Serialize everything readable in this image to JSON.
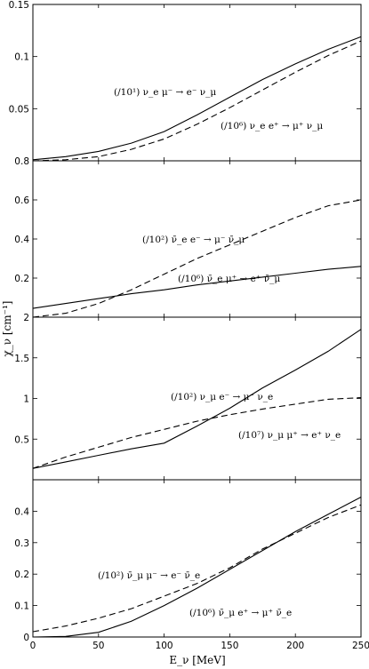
{
  "figure": {
    "ylabel": "χ_ν [cm⁻¹]",
    "xlabel": "E_ν [MeV]"
  },
  "chart_data": [
    {
      "type": "line",
      "xlim": [
        0,
        250
      ],
      "ylim": [
        0,
        0.15
      ],
      "yticks": [
        "0.15",
        "0.1",
        "0.05"
      ],
      "xticks": [],
      "grid": false,
      "series": [
        {
          "name": "(/10¹) ν_e μ⁻ → e⁻ ν_μ",
          "style": "solid",
          "x": [
            0,
            25,
            50,
            75,
            100,
            125,
            150,
            175,
            200,
            225,
            250
          ],
          "y": [
            0.001,
            0.004,
            0.009,
            0.017,
            0.028,
            0.044,
            0.061,
            0.078,
            0.093,
            0.107,
            0.119
          ]
        },
        {
          "name": "(/10⁶) ν_e e⁺ → μ⁺ ν_μ",
          "style": "dashed",
          "x": [
            0,
            25,
            50,
            75,
            100,
            125,
            150,
            175,
            200,
            225,
            250
          ],
          "y": [
            0,
            0.001,
            0.004,
            0.011,
            0.021,
            0.035,
            0.051,
            0.068,
            0.085,
            0.101,
            0.115
          ]
        }
      ]
    },
    {
      "type": "line",
      "xlim": [
        0,
        250
      ],
      "ylim": [
        0,
        0.8
      ],
      "yticks": [
        "0.8",
        "0.6",
        "0.4",
        "0.2"
      ],
      "xticks": [],
      "grid": false,
      "series": [
        {
          "name": "(/10²) ν̄_e e⁻ → μ⁻ ν̄_μ",
          "style": "dashed",
          "x": [
            0,
            25,
            50,
            75,
            100,
            125,
            150,
            175,
            200,
            225,
            250
          ],
          "y": [
            0,
            0.02,
            0.07,
            0.14,
            0.22,
            0.3,
            0.37,
            0.44,
            0.51,
            0.57,
            0.6
          ]
        },
        {
          "name": "(/10⁶) ν̄_e μ⁺ → e⁺ ν̄_μ",
          "style": "solid",
          "x": [
            0,
            25,
            50,
            75,
            100,
            125,
            150,
            175,
            200,
            225,
            250
          ],
          "y": [
            0.045,
            0.07,
            0.095,
            0.12,
            0.14,
            0.165,
            0.185,
            0.205,
            0.225,
            0.245,
            0.26
          ]
        }
      ]
    },
    {
      "type": "line",
      "xlim": [
        0,
        250
      ],
      "ylim": [
        0,
        2
      ],
      "yticks": [
        "2",
        "1.5",
        "1",
        "0.5"
      ],
      "xticks": [],
      "grid": false,
      "series": [
        {
          "name": "(/10²) ν_μ e⁻ → μ⁻ ν_e",
          "style": "solid",
          "x": [
            0,
            25,
            50,
            75,
            100,
            125,
            150,
            175,
            200,
            225,
            250
          ],
          "y": [
            0.14,
            0.22,
            0.3,
            0.38,
            0.45,
            0.66,
            0.88,
            1.13,
            1.35,
            1.58,
            1.85
          ]
        },
        {
          "name": "(/10⁷) ν_μ μ⁺ → e⁺ ν_e",
          "style": "dashed",
          "x": [
            0,
            25,
            50,
            75,
            100,
            125,
            150,
            175,
            200,
            225,
            250
          ],
          "y": [
            0.14,
            0.28,
            0.4,
            0.52,
            0.62,
            0.72,
            0.8,
            0.87,
            0.93,
            0.99,
            1.01
          ]
        }
      ]
    },
    {
      "type": "line",
      "xlim": [
        0,
        250
      ],
      "ylim": [
        0,
        0.5
      ],
      "yticks": [
        "0.4",
        "0.3",
        "0.2",
        "0.1",
        "0"
      ],
      "xticks": [
        "0",
        "50",
        "100",
        "150",
        "200",
        "250"
      ],
      "grid": false,
      "series": [
        {
          "name": "(/10²) ν̄_μ μ⁻ → e⁻ ν̄_e",
          "style": "dashed",
          "x": [
            0,
            25,
            50,
            75,
            100,
            125,
            150,
            175,
            200,
            225,
            250
          ],
          "y": [
            0.017,
            0.035,
            0.06,
            0.09,
            0.13,
            0.17,
            0.22,
            0.28,
            0.33,
            0.38,
            0.42
          ]
        },
        {
          "name": "(/10⁶) ν̄_μ e⁺ → μ⁺ ν̄_e",
          "style": "solid",
          "x": [
            0,
            25,
            50,
            75,
            100,
            125,
            150,
            175,
            200,
            225,
            250
          ],
          "y": [
            0,
            0.002,
            0.015,
            0.05,
            0.1,
            0.155,
            0.215,
            0.275,
            0.335,
            0.39,
            0.445
          ]
        }
      ]
    }
  ]
}
